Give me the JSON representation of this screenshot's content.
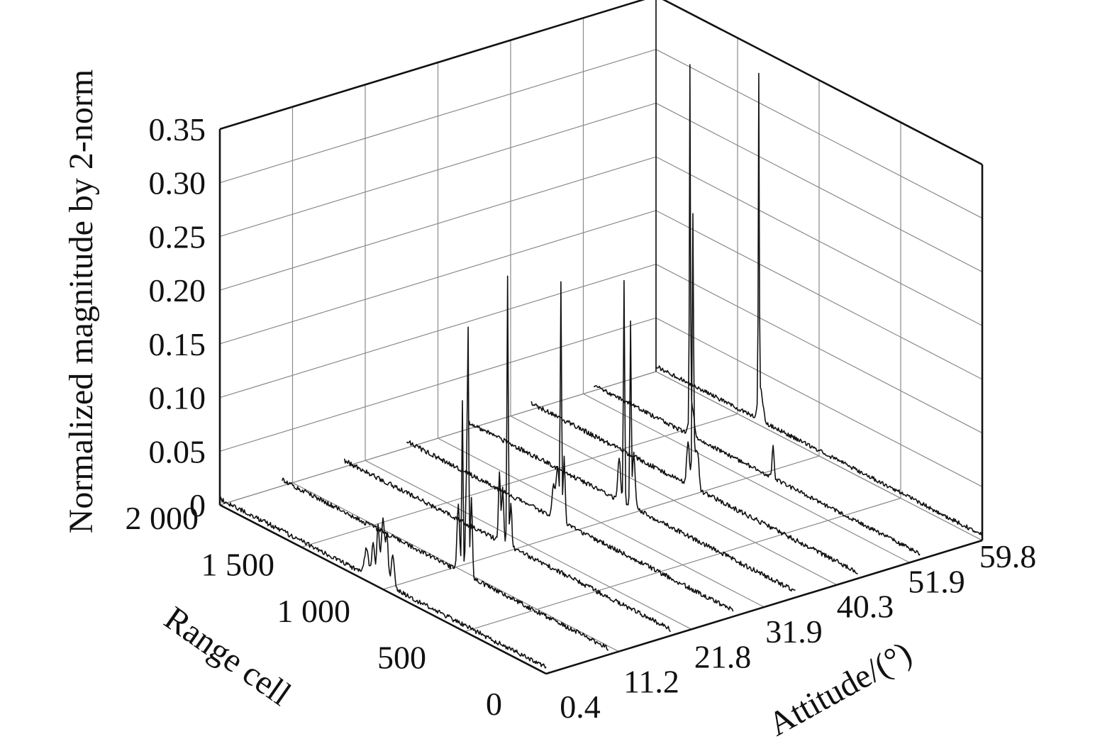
{
  "chart_data": {
    "type": "line",
    "subtype": "3d-waterfall",
    "title": "",
    "xlabel": "Range cell",
    "ylabel": "Attitude/(°)",
    "zlabel": "Normalized magnitude by 2-norm",
    "x_ticks": [
      "0",
      "500",
      "1 000",
      "1 500",
      "2 000"
    ],
    "y_ticks": [
      "0.4",
      "11.2",
      "21.8",
      "31.9",
      "40.3",
      "51.9",
      "59.8"
    ],
    "z_ticks": [
      "0",
      "0.05",
      "0.10",
      "0.15",
      "0.20",
      "0.25",
      "0.30",
      "0.35"
    ],
    "xlim": [
      0,
      2000
    ],
    "ylim_index": [
      0,
      6
    ],
    "zlim": [
      0,
      0.35
    ],
    "grid": true,
    "line_color": "#111111",
    "series": [
      {
        "attitude": "0.4",
        "noise": 0.008,
        "peaks": [
          {
            "x": 1000,
            "z": 0.06,
            "w": 10
          },
          {
            "x": 975,
            "z": 0.045,
            "w": 8
          },
          {
            "x": 1030,
            "z": 0.05,
            "w": 8
          },
          {
            "x": 1060,
            "z": 0.035,
            "w": 8
          },
          {
            "x": 940,
            "z": 0.03,
            "w": 10
          },
          {
            "x": 1100,
            "z": 0.025,
            "w": 12
          }
        ]
      },
      {
        "attitude": "11.2",
        "noise": 0.008,
        "peaks": [
          {
            "x": 860,
            "z": 0.21,
            "w": 4
          },
          {
            "x": 895,
            "z": 0.16,
            "w": 4
          },
          {
            "x": 870,
            "z": 0.09,
            "w": 6
          },
          {
            "x": 840,
            "z": 0.075,
            "w": 6
          },
          {
            "x": 920,
            "z": 0.06,
            "w": 8
          }
        ]
      },
      {
        "attitude": "21.8",
        "noise": 0.008,
        "peaks": [
          {
            "x": 1000,
            "z": 0.25,
            "w": 4
          },
          {
            "x": 1030,
            "z": 0.05,
            "w": 6
          },
          {
            "x": 1050,
            "z": 0.065,
            "w": 6
          },
          {
            "x": 980,
            "z": 0.04,
            "w": 6
          }
        ]
      },
      {
        "attitude": "31.9",
        "noise": 0.008,
        "peaks": [
          {
            "x": 1055,
            "z": 0.22,
            "w": 4
          },
          {
            "x": 1035,
            "z": 0.06,
            "w": 6
          },
          {
            "x": 1075,
            "z": 0.05,
            "w": 8
          },
          {
            "x": 1100,
            "z": 0.03,
            "w": 10
          }
        ]
      },
      {
        "attitude": "40.3",
        "noise": 0.008,
        "peaks": [
          {
            "x": 1010,
            "z": 0.17,
            "w": 4
          },
          {
            "x": 1050,
            "z": 0.205,
            "w": 4
          },
          {
            "x": 990,
            "z": 0.05,
            "w": 8
          },
          {
            "x": 1080,
            "z": 0.04,
            "w": 8
          }
        ]
      },
      {
        "attitude": "51.9",
        "noise": 0.008,
        "peaks": [
          {
            "x": 1010,
            "z": 0.23,
            "w": 4
          },
          {
            "x": 1000,
            "z": 0.03,
            "w": 14
          },
          {
            "x": 1040,
            "z": 0.04,
            "w": 8
          },
          {
            "x": 980,
            "z": 0.025,
            "w": 8
          }
        ]
      },
      {
        "attitude": "59.8",
        "noise": 0.007,
        "peaks": [
          {
            "x": 1410,
            "z": 0.34,
            "w": 3
          },
          {
            "x": 1400,
            "z": 0.03,
            "w": 14
          },
          {
            "x": 900,
            "z": 0.03,
            "w": 6
          }
        ]
      },
      {
        "attitude": "",
        "noise": 0.007,
        "peaks": [
          {
            "x": 1370,
            "z": 0.3,
            "w": 3
          },
          {
            "x": 1360,
            "z": 0.03,
            "w": 14
          }
        ]
      }
    ]
  }
}
